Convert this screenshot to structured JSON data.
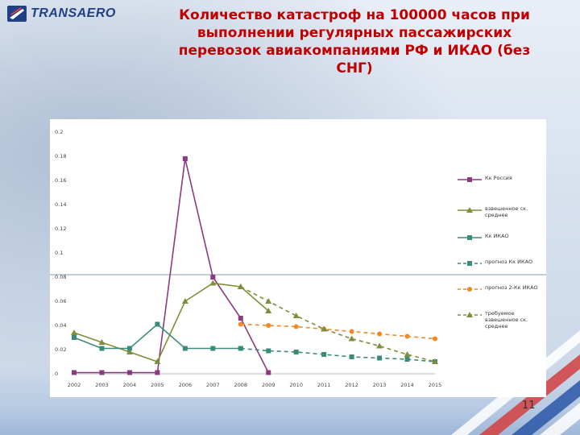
{
  "header": {
    "logo_text": "TRANSAERO",
    "title": "Количество катастроф на 100000 часов при выполнении регулярных пассажирских перевозок авиакомпаниями РФ и ИКАО (без СНГ)"
  },
  "footer": {
    "page_number": "11"
  },
  "colors": {
    "purple": "#8b3a7f",
    "olive": "#7f8e3a",
    "teal": "#3a8c7a",
    "orange": "#f08a24",
    "title_red": "#c00000",
    "reference_line": "#8a9bb4"
  },
  "chart_data": {
    "type": "line",
    "categories": [
      "2002",
      "2003",
      "2004",
      "2005",
      "2006",
      "2007",
      "2008",
      "2009",
      "2010",
      "2011",
      "2012",
      "2013",
      "2014",
      "2015"
    ],
    "ylim": [
      0,
      0.2
    ],
    "yticks": [
      "0",
      "0.02",
      "0.04",
      "0.06",
      "0.08",
      "0.1",
      "0.12",
      "0.14",
      "0.16",
      "0.18",
      "0.2"
    ],
    "reference_y": 0.082,
    "legend_position": "right",
    "series": [
      {
        "name": "Кк Россия",
        "color": "#8b3a7f",
        "marker": "square",
        "dash": false,
        "values": [
          0.001,
          0.001,
          0.001,
          0.001,
          0.178,
          0.08,
          0.046,
          0.001,
          null,
          null,
          null,
          null,
          null,
          null
        ]
      },
      {
        "name": "взвешенное ск. среднее",
        "color": "#7f8e3a",
        "marker": "triangle",
        "dash": false,
        "values": [
          0.034,
          0.026,
          0.018,
          0.01,
          0.06,
          0.075,
          0.072,
          0.052,
          null,
          null,
          null,
          null,
          null,
          null
        ]
      },
      {
        "name": "Кк ИКАО",
        "color": "#3a8c7a",
        "marker": "square",
        "dash": false,
        "values": [
          0.03,
          0.021,
          0.021,
          0.041,
          0.021,
          0.021,
          0.021,
          null,
          null,
          null,
          null,
          null,
          null,
          null
        ]
      },
      {
        "name": "прогноз Кк ИКАО",
        "color": "#3a8c7a",
        "marker": "square",
        "dash": true,
        "values": [
          null,
          null,
          null,
          null,
          null,
          null,
          0.021,
          0.019,
          0.018,
          0.016,
          0.014,
          0.013,
          0.012,
          0.01
        ]
      },
      {
        "name": "прогноз 2-Кк ИКАО",
        "color": "#f08a24",
        "marker": "circle",
        "dash": true,
        "values": [
          null,
          null,
          null,
          null,
          null,
          null,
          0.041,
          0.04,
          0.039,
          0.037,
          0.035,
          0.033,
          0.031,
          0.029
        ]
      },
      {
        "name": "требуемое взвешенное ск. среднее",
        "color": "#7f8e3a",
        "marker": "triangle",
        "dash": true,
        "values": [
          null,
          null,
          null,
          null,
          null,
          null,
          0.072,
          0.06,
          0.048,
          0.037,
          0.029,
          0.023,
          0.016,
          0.01
        ]
      }
    ]
  }
}
